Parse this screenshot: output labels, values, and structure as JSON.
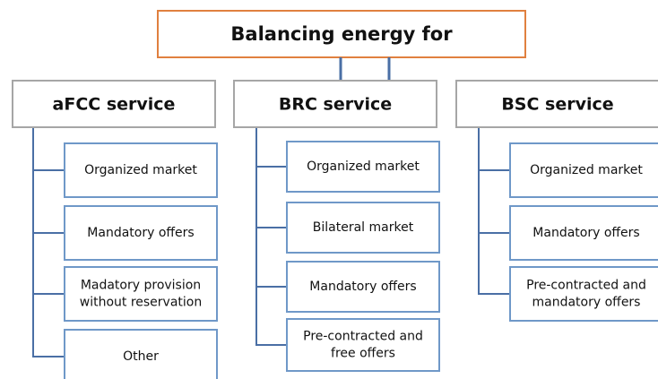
{
  "root": {
    "title": "Balancing energy for"
  },
  "columns": [
    {
      "header": "aFCC service",
      "items": [
        [
          "Organized market"
        ],
        [
          "Mandatory offers"
        ],
        [
          "Madatory provision",
          "without reservation"
        ],
        [
          "Other"
        ]
      ]
    },
    {
      "header": "BRC service",
      "items": [
        [
          "Organized market"
        ],
        [
          "Bilateral market"
        ],
        [
          "Mandatory offers"
        ],
        [
          "Pre-contracted and",
          "free offers"
        ]
      ]
    },
    {
      "header": "BSC service",
      "items": [
        [
          "Organized market"
        ],
        [
          "Mandatory offers"
        ],
        [
          "Pre-contracted and",
          "mandatory offers"
        ]
      ]
    }
  ]
}
